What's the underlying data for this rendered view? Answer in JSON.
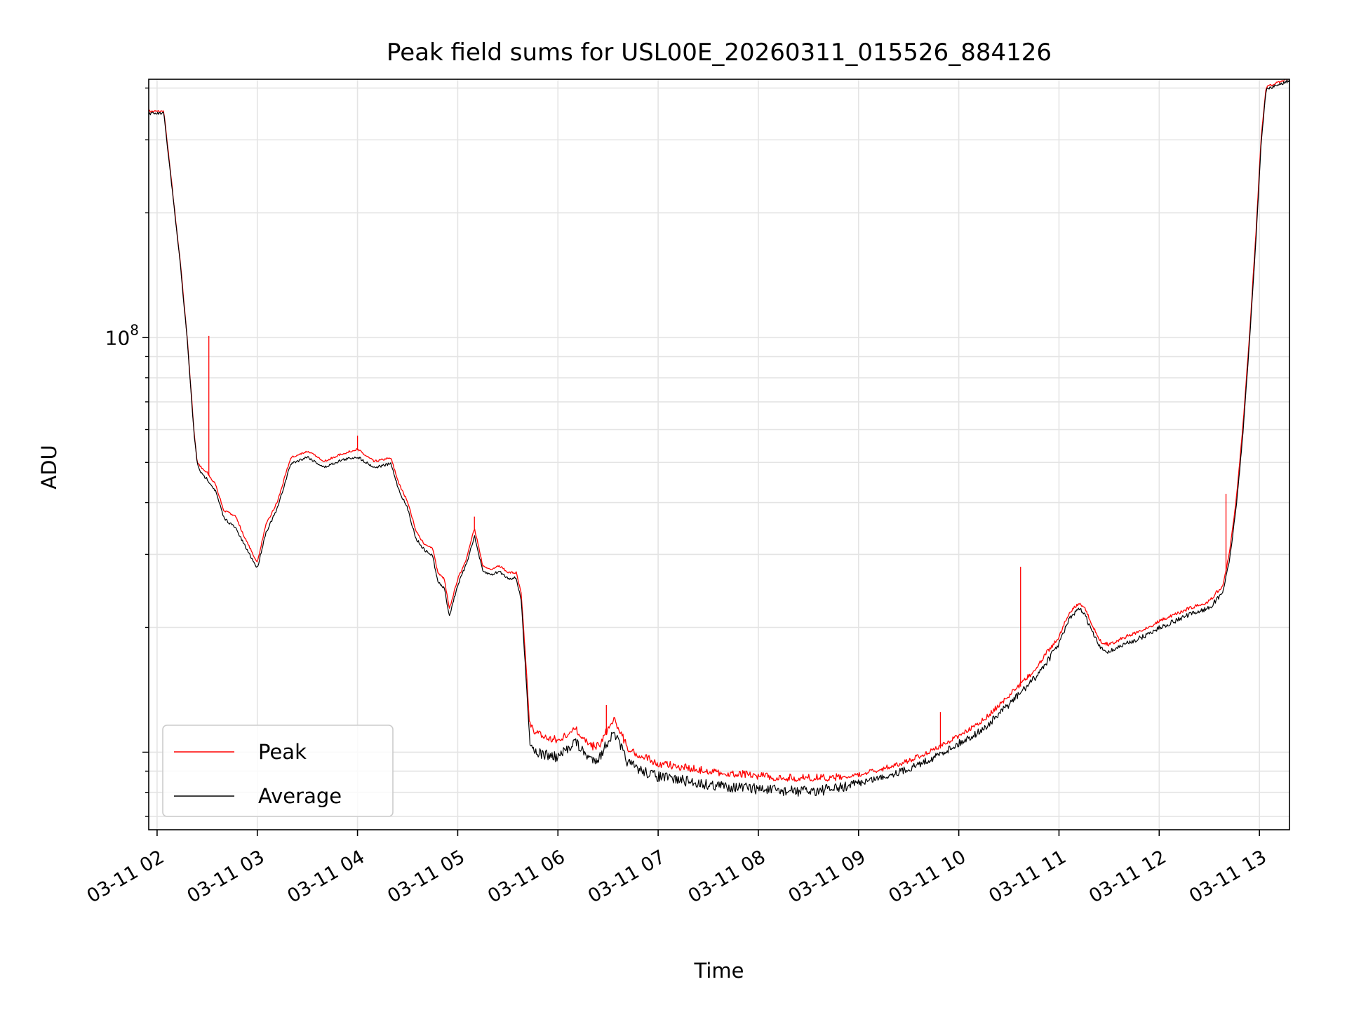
{
  "chart_data": {
    "type": "line",
    "title": "Peak field sums for USL00E_20260311_015526_884126",
    "xlabel": "Time",
    "ylabel": "ADU",
    "yscale": "log",
    "xlim": [
      "2026-03-11 01:55",
      "2026-03-11 13:18"
    ],
    "ylim": [
      6500000,
      420000000
    ],
    "x_tick_labels": [
      "03-11 02",
      "03-11 03",
      "03-11 04",
      "03-11 05",
      "03-11 06",
      "03-11 07",
      "03-11 08",
      "03-11 09",
      "03-11 10",
      "03-11 11",
      "03-11 12",
      "03-11 13"
    ],
    "y_tick_labels": [
      {
        "value": 100000000,
        "base": "10",
        "exp": "8"
      }
    ],
    "grid": true,
    "legend_position": "lower-left",
    "series": [
      {
        "name": "Peak",
        "color": "#ff0000",
        "points": [
          [
            "2026-03-11 01:55",
            350000000
          ],
          [
            "2026-03-11 02:00",
            350000000
          ],
          [
            "2026-03-11 02:04",
            350000000
          ],
          [
            "2026-03-11 02:08",
            250000000
          ],
          [
            "2026-03-11 02:14",
            150000000
          ],
          [
            "2026-03-11 02:18",
            100000000
          ],
          [
            "2026-03-11 02:22",
            60000000
          ],
          [
            "2026-03-11 02:24",
            50000000
          ],
          [
            "2026-03-11 02:27",
            48000000
          ],
          [
            "2026-03-11 02:30",
            47000000
          ],
          [
            "2026-03-11 02:35",
            44000000
          ],
          [
            "2026-03-11 02:40",
            38000000
          ],
          [
            "2026-03-11 02:47",
            37000000
          ],
          [
            "2026-03-11 02:52",
            33000000
          ],
          [
            "2026-03-11 03:00",
            28500000
          ],
          [
            "2026-03-11 03:05",
            35000000
          ],
          [
            "2026-03-11 03:12",
            40000000
          ],
          [
            "2026-03-11 03:20",
            51000000
          ],
          [
            "2026-03-11 03:30",
            53000000
          ],
          [
            "2026-03-11 03:40",
            50000000
          ],
          [
            "2026-03-11 03:50",
            52000000
          ],
          [
            "2026-03-11 04:00",
            53500000
          ],
          [
            "2026-03-11 04:10",
            50000000
          ],
          [
            "2026-03-11 04:20",
            51000000
          ],
          [
            "2026-03-11 04:25",
            44000000
          ],
          [
            "2026-03-11 04:30",
            40000000
          ],
          [
            "2026-03-11 04:35",
            34000000
          ],
          [
            "2026-03-11 04:40",
            31500000
          ],
          [
            "2026-03-11 04:45",
            31000000
          ],
          [
            "2026-03-11 04:48",
            27000000
          ],
          [
            "2026-03-11 04:52",
            26000000
          ],
          [
            "2026-03-11 04:55",
            22000000
          ],
          [
            "2026-03-11 05:00",
            26000000
          ],
          [
            "2026-03-11 05:05",
            29000000
          ],
          [
            "2026-03-11 05:10",
            34500000
          ],
          [
            "2026-03-11 05:15",
            28000000
          ],
          [
            "2026-03-11 05:20",
            27500000
          ],
          [
            "2026-03-11 05:25",
            28000000
          ],
          [
            "2026-03-11 05:30",
            27000000
          ],
          [
            "2026-03-11 05:35",
            27000000
          ],
          [
            "2026-03-11 05:38",
            24000000
          ],
          [
            "2026-03-11 05:41",
            16000000
          ],
          [
            "2026-03-11 05:43",
            11500000
          ],
          [
            "2026-03-11 05:46",
            11000000
          ],
          [
            "2026-03-11 05:50",
            10800000
          ],
          [
            "2026-03-11 05:55",
            10600000
          ],
          [
            "2026-03-11 06:00",
            10500000
          ],
          [
            "2026-03-11 06:05",
            10800000
          ],
          [
            "2026-03-11 06:10",
            11300000
          ],
          [
            "2026-03-11 06:15",
            10600000
          ],
          [
            "2026-03-11 06:20",
            10100000
          ],
          [
            "2026-03-11 06:25",
            10200000
          ],
          [
            "2026-03-11 06:30",
            11200000
          ],
          [
            "2026-03-11 06:34",
            11700000
          ],
          [
            "2026-03-11 06:38",
            10800000
          ],
          [
            "2026-03-11 06:42",
            10000000
          ],
          [
            "2026-03-11 06:50",
            9600000
          ],
          [
            "2026-03-11 07:00",
            9200000
          ],
          [
            "2026-03-11 07:15",
            9000000
          ],
          [
            "2026-03-11 07:30",
            8800000
          ],
          [
            "2026-03-11 07:45",
            8700000
          ],
          [
            "2026-03-11 08:00",
            8600000
          ],
          [
            "2026-03-11 08:15",
            8500000
          ],
          [
            "2026-03-11 08:30",
            8500000
          ],
          [
            "2026-03-11 08:45",
            8500000
          ],
          [
            "2026-03-11 09:00",
            8700000
          ],
          [
            "2026-03-11 09:15",
            9000000
          ],
          [
            "2026-03-11 09:30",
            9400000
          ],
          [
            "2026-03-11 09:45",
            10000000
          ],
          [
            "2026-03-11 10:00",
            10800000
          ],
          [
            "2026-03-11 10:15",
            11800000
          ],
          [
            "2026-03-11 10:30",
            13500000
          ],
          [
            "2026-03-11 10:45",
            15500000
          ],
          [
            "2026-03-11 11:00",
            18800000
          ],
          [
            "2026-03-11 11:06",
            21500000
          ],
          [
            "2026-03-11 11:12",
            22700000
          ],
          [
            "2026-03-11 11:15",
            22300000
          ],
          [
            "2026-03-11 11:20",
            20000000
          ],
          [
            "2026-03-11 11:25",
            18300000
          ],
          [
            "2026-03-11 11:30",
            18000000
          ],
          [
            "2026-03-11 11:40",
            18800000
          ],
          [
            "2026-03-11 11:50",
            19500000
          ],
          [
            "2026-03-11 12:00",
            20500000
          ],
          [
            "2026-03-11 12:15",
            21800000
          ],
          [
            "2026-03-11 12:30",
            22900000
          ],
          [
            "2026-03-11 12:38",
            25000000
          ],
          [
            "2026-03-11 12:42",
            30000000
          ],
          [
            "2026-03-11 12:46",
            40000000
          ],
          [
            "2026-03-11 12:50",
            60000000
          ],
          [
            "2026-03-11 12:54",
            100000000
          ],
          [
            "2026-03-11 12:58",
            180000000
          ],
          [
            "2026-03-11 13:01",
            300000000
          ],
          [
            "2026-03-11 13:04",
            400000000
          ],
          [
            "2026-03-11 13:18",
            420000000
          ]
        ],
        "spikes": [
          [
            "2026-03-11 02:31",
            101000000
          ],
          [
            "2026-03-11 04:00",
            58000000
          ],
          [
            "2026-03-11 05:10",
            37000000
          ],
          [
            "2026-03-11 06:29",
            13000000
          ],
          [
            "2026-03-11 09:49",
            12500000
          ],
          [
            "2026-03-11 10:37",
            28000000
          ],
          [
            "2026-03-11 12:40",
            42000000
          ],
          [
            "2026-03-11 12:50",
            60000000
          ]
        ]
      },
      {
        "name": "Average",
        "color": "#000000",
        "points": [
          [
            "2026-03-11 01:55",
            350000000
          ],
          [
            "2026-03-11 02:00",
            350000000
          ],
          [
            "2026-03-11 02:04",
            350000000
          ],
          [
            "2026-03-11 02:08",
            250000000
          ],
          [
            "2026-03-11 02:14",
            150000000
          ],
          [
            "2026-03-11 02:18",
            100000000
          ],
          [
            "2026-03-11 02:22",
            60000000
          ],
          [
            "2026-03-11 02:24",
            50000000
          ],
          [
            "2026-03-11 02:27",
            47000000
          ],
          [
            "2026-03-11 02:30",
            46000000
          ],
          [
            "2026-03-11 02:35",
            43000000
          ],
          [
            "2026-03-11 02:40",
            37000000
          ],
          [
            "2026-03-11 02:47",
            35000000
          ],
          [
            "2026-03-11 02:52",
            32000000
          ],
          [
            "2026-03-11 03:00",
            28000000
          ],
          [
            "2026-03-11 03:05",
            34000000
          ],
          [
            "2026-03-11 03:12",
            39000000
          ],
          [
            "2026-03-11 03:20",
            50000000
          ],
          [
            "2026-03-11 03:30",
            52000000
          ],
          [
            "2026-03-11 03:40",
            49000000
          ],
          [
            "2026-03-11 03:50",
            51000000
          ],
          [
            "2026-03-11 04:00",
            52000000
          ],
          [
            "2026-03-11 04:10",
            49000000
          ],
          [
            "2026-03-11 04:20",
            50000000
          ],
          [
            "2026-03-11 04:25",
            43000000
          ],
          [
            "2026-03-11 04:30",
            39000000
          ],
          [
            "2026-03-11 04:35",
            33000000
          ],
          [
            "2026-03-11 04:40",
            31000000
          ],
          [
            "2026-03-11 04:45",
            30000000
          ],
          [
            "2026-03-11 04:48",
            26000000
          ],
          [
            "2026-03-11 04:52",
            25000000
          ],
          [
            "2026-03-11 04:55",
            21500000
          ],
          [
            "2026-03-11 05:00",
            25500000
          ],
          [
            "2026-03-11 05:05",
            28500000
          ],
          [
            "2026-03-11 05:10",
            33500000
          ],
          [
            "2026-03-11 05:15",
            27500000
          ],
          [
            "2026-03-11 05:20",
            27000000
          ],
          [
            "2026-03-11 05:25",
            27500000
          ],
          [
            "2026-03-11 05:30",
            26500000
          ],
          [
            "2026-03-11 05:35",
            26500000
          ],
          [
            "2026-03-11 05:38",
            23500000
          ],
          [
            "2026-03-11 05:41",
            15000000
          ],
          [
            "2026-03-11 05:43",
            11000000
          ],
          [
            "2026-03-11 05:46",
            10400000
          ],
          [
            "2026-03-11 05:50",
            10200000
          ],
          [
            "2026-03-11 05:55",
            10100000
          ],
          [
            "2026-03-11 06:00",
            10000000
          ],
          [
            "2026-03-11 06:05",
            10400000
          ],
          [
            "2026-03-11 06:10",
            11000000
          ],
          [
            "2026-03-11 06:15",
            10300000
          ],
          [
            "2026-03-11 06:20",
            9900000
          ],
          [
            "2026-03-11 06:25",
            10000000
          ],
          [
            "2026-03-11 06:30",
            11000000
          ],
          [
            "2026-03-11 06:34",
            11400000
          ],
          [
            "2026-03-11 06:38",
            10500000
          ],
          [
            "2026-03-11 06:42",
            9700000
          ],
          [
            "2026-03-11 06:50",
            9300000
          ],
          [
            "2026-03-11 07:00",
            9000000
          ],
          [
            "2026-03-11 07:15",
            8800000
          ],
          [
            "2026-03-11 07:30",
            8600000
          ],
          [
            "2026-03-11 07:45",
            8500000
          ],
          [
            "2026-03-11 08:00",
            8400000
          ],
          [
            "2026-03-11 08:15",
            8300000
          ],
          [
            "2026-03-11 08:30",
            8300000
          ],
          [
            "2026-03-11 08:45",
            8400000
          ],
          [
            "2026-03-11 09:00",
            8600000
          ],
          [
            "2026-03-11 09:15",
            8900000
          ],
          [
            "2026-03-11 09:30",
            9300000
          ],
          [
            "2026-03-11 09:45",
            9900000
          ],
          [
            "2026-03-11 10:00",
            10700000
          ],
          [
            "2026-03-11 10:15",
            11600000
          ],
          [
            "2026-03-11 10:30",
            13300000
          ],
          [
            "2026-03-11 10:45",
            15300000
          ],
          [
            "2026-03-11 11:00",
            18500000
          ],
          [
            "2026-03-11 11:06",
            21200000
          ],
          [
            "2026-03-11 11:12",
            22400000
          ],
          [
            "2026-03-11 11:15",
            22000000
          ],
          [
            "2026-03-11 11:20",
            19700000
          ],
          [
            "2026-03-11 11:25",
            18000000
          ],
          [
            "2026-03-11 11:30",
            17700000
          ],
          [
            "2026-03-11 11:40",
            18500000
          ],
          [
            "2026-03-11 11:50",
            19200000
          ],
          [
            "2026-03-11 12:00",
            20200000
          ],
          [
            "2026-03-11 12:15",
            21500000
          ],
          [
            "2026-03-11 12:30",
            22600000
          ],
          [
            "2026-03-11 12:38",
            24500000
          ],
          [
            "2026-03-11 12:42",
            29000000
          ],
          [
            "2026-03-11 12:46",
            39000000
          ],
          [
            "2026-03-11 12:50",
            58000000
          ],
          [
            "2026-03-11 12:54",
            98000000
          ],
          [
            "2026-03-11 12:58",
            175000000
          ],
          [
            "2026-03-11 13:01",
            295000000
          ],
          [
            "2026-03-11 13:04",
            400000000
          ],
          [
            "2026-03-11 13:18",
            420000000
          ]
        ]
      }
    ]
  }
}
